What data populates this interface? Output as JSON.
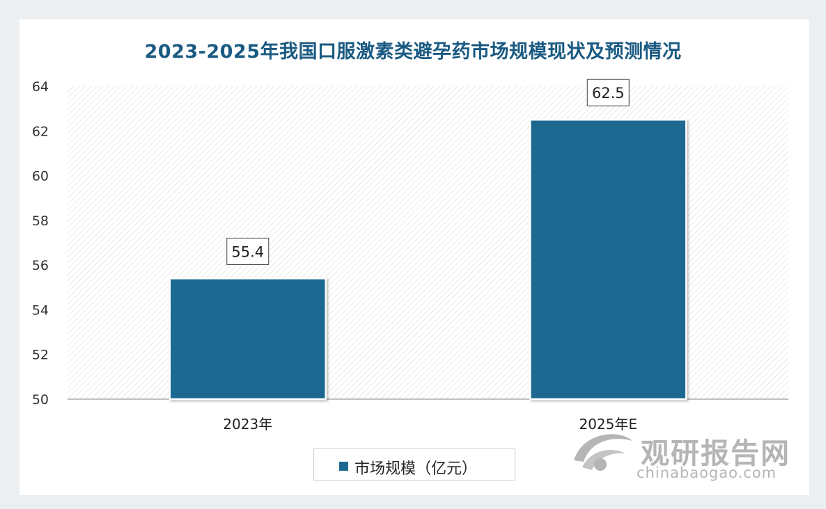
{
  "chart_data": {
    "type": "bar",
    "title": "2023-2025年我国口服激素类避孕药市场规模现状及预测情况",
    "categories": [
      "2023年",
      "2025年E"
    ],
    "series": [
      {
        "name": "市场规模（亿元）",
        "values": [
          55.4,
          62.5
        ]
      }
    ],
    "data_labels": [
      "55.4",
      "62.5"
    ],
    "ylim": [
      50,
      64
    ],
    "yticks": [
      "50",
      "52",
      "54",
      "56",
      "58",
      "60",
      "62",
      "64"
    ],
    "xlabel": "",
    "ylabel": "",
    "grid": false,
    "legend_position": "bottom",
    "colors": {
      "bar": "#1b6890",
      "title": "#1a5a82"
    }
  },
  "watermark": {
    "name": "观研报告网",
    "url": "chinabaogao.com"
  }
}
